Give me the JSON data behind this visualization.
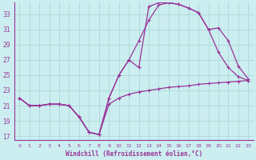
{
  "xlabel": "Windchill (Refroidissement éolien,°C)",
  "xlim": [
    -0.5,
    23.5
  ],
  "ylim": [
    16.5,
    34.5
  ],
  "yticks": [
    17,
    19,
    21,
    23,
    25,
    27,
    29,
    31,
    33
  ],
  "xticks": [
    0,
    1,
    2,
    3,
    4,
    5,
    6,
    7,
    8,
    9,
    10,
    11,
    12,
    13,
    14,
    15,
    16,
    17,
    18,
    19,
    20,
    21,
    22,
    23
  ],
  "bg_color": "#cceef0",
  "grid_color": "#aad8d8",
  "line_color": "#993399",
  "line1_x": [
    0,
    1,
    2,
    3,
    4,
    5,
    6,
    7,
    8,
    9,
    10,
    11,
    12,
    13,
    14,
    15,
    16,
    17,
    18,
    19,
    20,
    21,
    22,
    23
  ],
  "line1_y": [
    22.0,
    21.0,
    21.0,
    21.2,
    21.2,
    21.0,
    19.5,
    17.5,
    17.2,
    21.2,
    22.0,
    22.5,
    22.8,
    23.0,
    23.2,
    23.4,
    23.5,
    23.6,
    23.8,
    23.9,
    24.0,
    24.1,
    24.2,
    24.3
  ],
  "line2_x": [
    0,
    1,
    2,
    3,
    4,
    5,
    6,
    7,
    8,
    9,
    10,
    11,
    12,
    13,
    14,
    15,
    16,
    17,
    18,
    19,
    20,
    21,
    22,
    23
  ],
  "line2_y": [
    22.0,
    21.0,
    21.0,
    21.2,
    21.2,
    21.0,
    19.5,
    17.5,
    17.2,
    22.0,
    25.0,
    27.0,
    29.5,
    32.2,
    34.2,
    34.5,
    34.3,
    33.8,
    33.2,
    31.0,
    31.2,
    29.5,
    26.2,
    24.5
  ],
  "line3_x": [
    0,
    1,
    2,
    3,
    4,
    5,
    6,
    7,
    8,
    9,
    10,
    11,
    12,
    13,
    14,
    15,
    16,
    17,
    18,
    19,
    20,
    21,
    22,
    23
  ],
  "line3_y": [
    22.0,
    21.0,
    21.0,
    21.2,
    21.2,
    21.0,
    19.5,
    17.5,
    17.2,
    22.0,
    25.0,
    27.0,
    26.0,
    34.0,
    34.5,
    34.5,
    34.3,
    33.8,
    33.2,
    31.0,
    28.0,
    26.0,
    24.8,
    24.3
  ]
}
